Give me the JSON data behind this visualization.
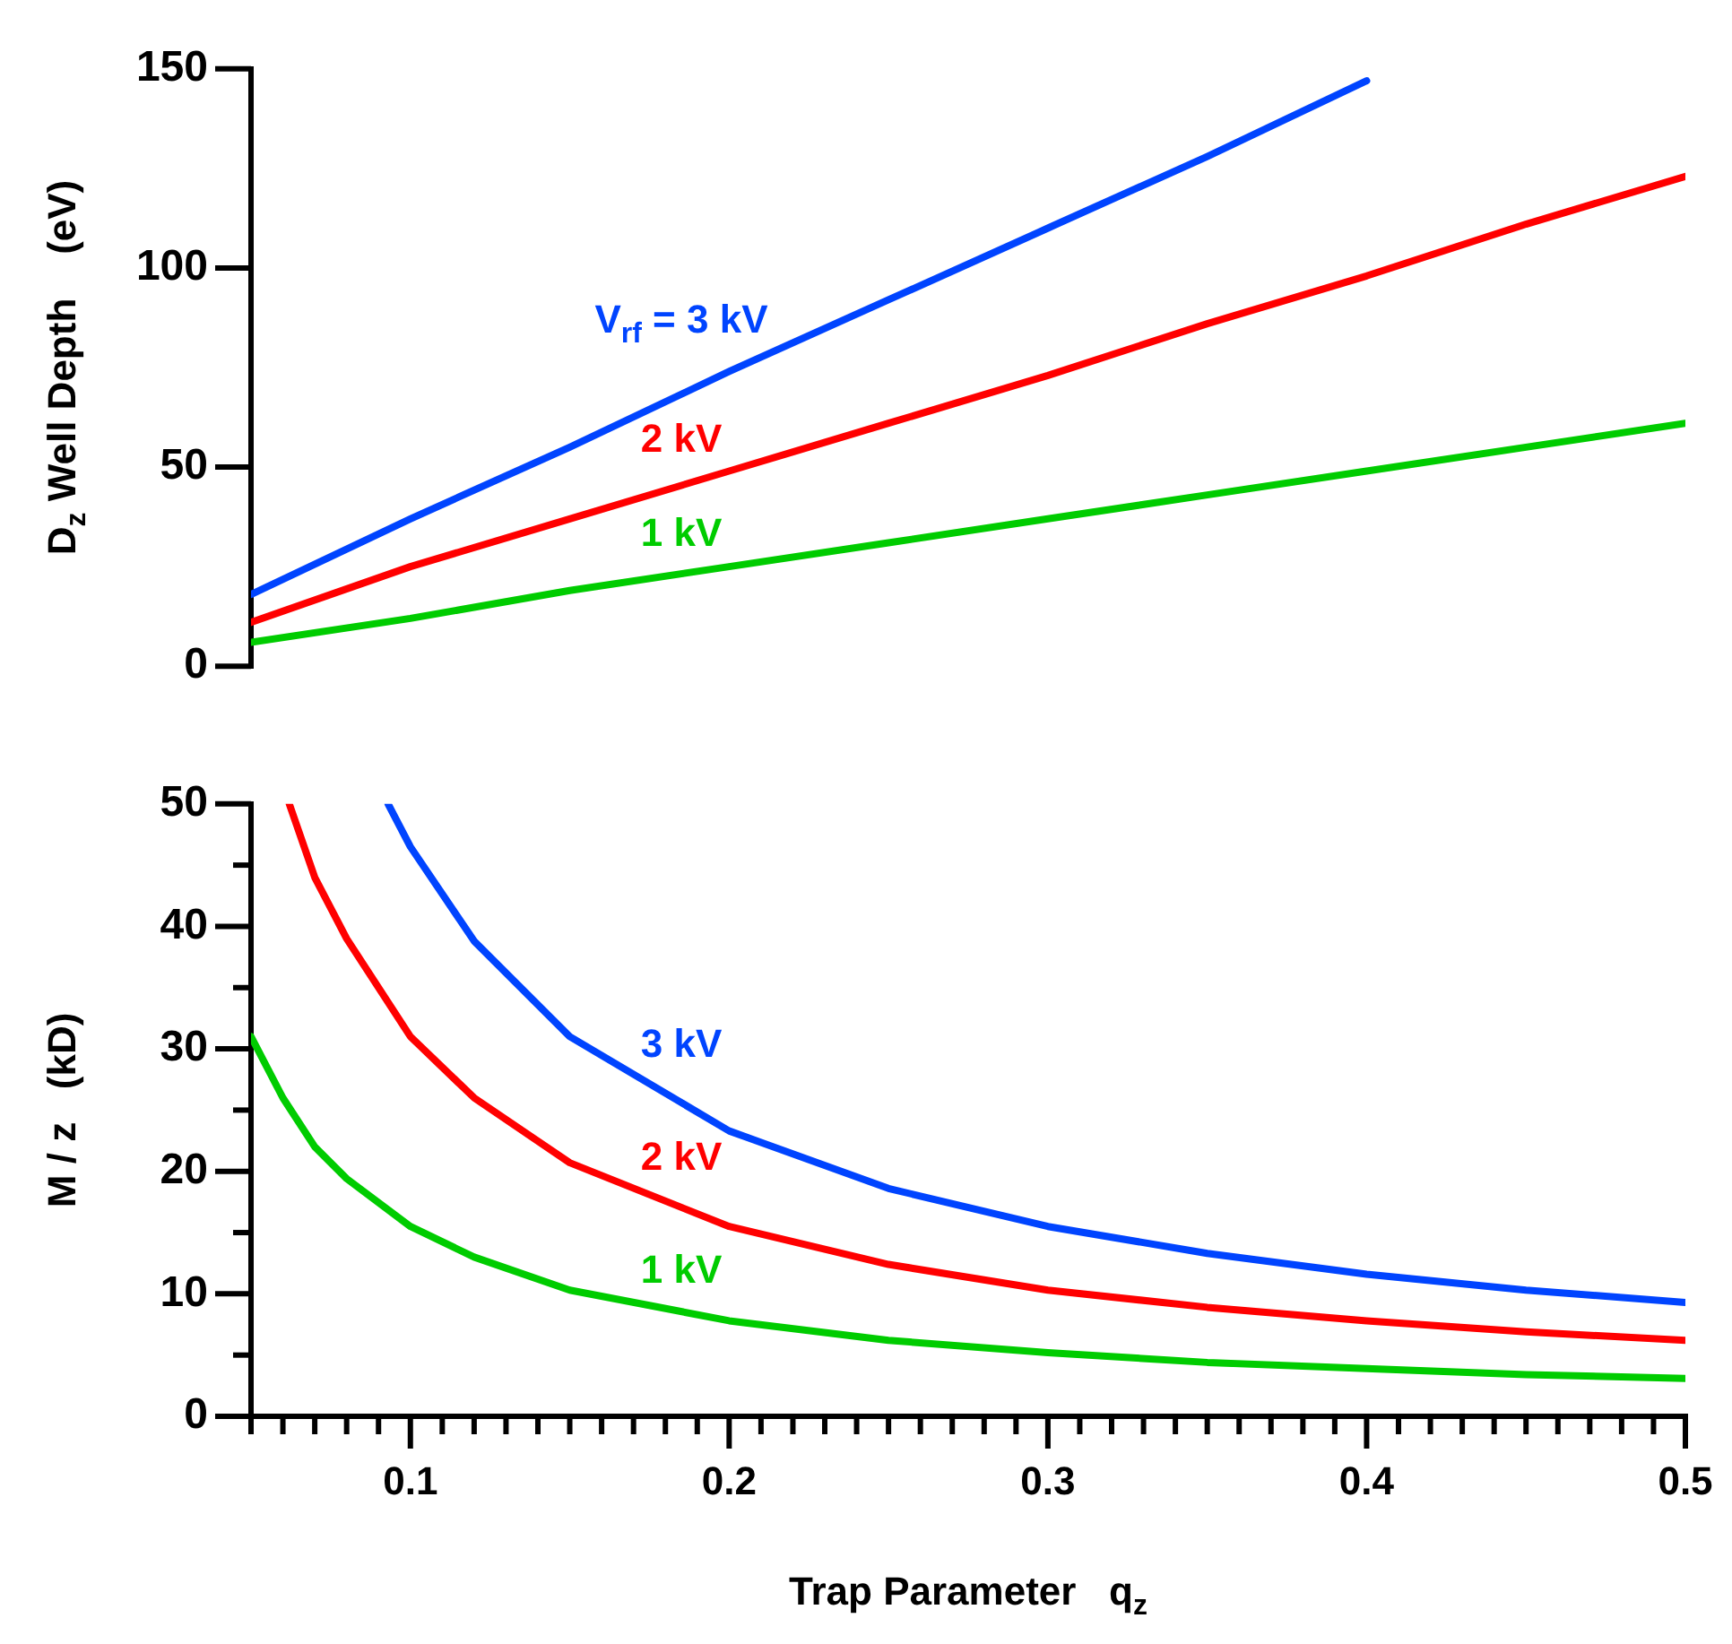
{
  "chart_data": [
    {
      "type": "line",
      "ylabel": "D$_{z}$ Well Depth    (eV)",
      "xlim": [
        0.05,
        0.5
      ],
      "ylim": [
        0,
        150
      ],
      "yticks": [
        0,
        50,
        100,
        150
      ],
      "tick_labels": "y",
      "grid": false,
      "legend": false,
      "marker": "none",
      "line_style": "solid",
      "series": [
        {
          "name": "V$_{rf}$ = 3 kV",
          "color": "#0044ff",
          "x": [
            0.05,
            0.1,
            0.15,
            0.2,
            0.25,
            0.3,
            0.35,
            0.4
          ],
          "values": [
            18,
            37,
            55,
            74,
            92,
            110,
            128,
            147
          ]
        },
        {
          "name": "2 kV",
          "color": "#ff0000",
          "x": [
            0.05,
            0.1,
            0.15,
            0.2,
            0.25,
            0.3,
            0.35,
            0.4,
            0.45,
            0.5
          ],
          "values": [
            11,
            25,
            37,
            49,
            61,
            73,
            86,
            98,
            111,
            123
          ]
        },
        {
          "name": "1 kV",
          "color": "#00cc00",
          "x": [
            0.05,
            0.1,
            0.15,
            0.2,
            0.25,
            0.3,
            0.35,
            0.4,
            0.45,
            0.5
          ],
          "values": [
            6,
            12,
            19,
            25,
            31,
            37,
            43,
            49,
            55,
            61
          ]
        }
      ]
    },
    {
      "type": "line",
      "xlabel": "Trap Parameter   q$_{z}$",
      "ylabel": "M / z   (kD)",
      "xlim": [
        0.05,
        0.5
      ],
      "ylim": [
        0,
        50
      ],
      "grid": false,
      "legend": false,
      "marker": "none",
      "line_style": "solid",
      "xticks": [
        {
          "value": 0.05,
          "label": null
        },
        {
          "value": 0.06,
          "label": null
        },
        {
          "value": 0.07,
          "label": null
        },
        {
          "value": 0.08,
          "label": null
        },
        {
          "value": 0.09,
          "label": null
        },
        0.1,
        {
          "value": 0.11,
          "label": null
        },
        {
          "value": 0.12,
          "label": null
        },
        {
          "value": 0.13,
          "label": null
        },
        {
          "value": 0.14,
          "label": null
        },
        {
          "value": 0.15,
          "label": null
        },
        {
          "value": 0.16,
          "label": null
        },
        {
          "value": 0.17,
          "label": null
        },
        {
          "value": 0.18,
          "label": null
        },
        {
          "value": 0.19,
          "label": null
        },
        0.2,
        {
          "value": 0.21,
          "label": null
        },
        {
          "value": 0.22,
          "label": null
        },
        {
          "value": 0.23,
          "label": null
        },
        {
          "value": 0.24,
          "label": null
        },
        {
          "value": 0.25,
          "label": null
        },
        {
          "value": 0.26,
          "label": null
        },
        {
          "value": 0.27,
          "label": null
        },
        {
          "value": 0.28,
          "label": null
        },
        {
          "value": 0.29,
          "label": null
        },
        0.3,
        {
          "value": 0.31,
          "label": null
        },
        {
          "value": 0.32,
          "label": null
        },
        {
          "value": 0.33,
          "label": null
        },
        {
          "value": 0.34,
          "label": null
        },
        {
          "value": 0.35,
          "label": null
        },
        {
          "value": 0.36,
          "label": null
        },
        {
          "value": 0.37,
          "label": null
        },
        {
          "value": 0.38,
          "label": null
        },
        {
          "value": 0.39,
          "label": null
        },
        0.4,
        {
          "value": 0.41,
          "label": null
        },
        {
          "value": 0.42,
          "label": null
        },
        {
          "value": 0.43,
          "label": null
        },
        {
          "value": 0.44,
          "label": null
        },
        {
          "value": 0.45,
          "label": null
        },
        {
          "value": 0.46,
          "label": null
        },
        {
          "value": 0.47,
          "label": null
        },
        {
          "value": 0.48,
          "label": null
        },
        {
          "value": 0.49,
          "label": null
        },
        0.5
      ],
      "yticks": [
        0,
        {
          "value": 5,
          "label": null
        },
        10,
        {
          "value": 15,
          "label": null
        },
        20,
        {
          "value": 25,
          "label": null
        },
        30,
        {
          "value": 35,
          "label": null
        },
        40,
        {
          "value": 45,
          "label": null
        },
        50
      ],
      "series": [
        {
          "name": "3 kV",
          "color": "#0044ff",
          "x": [
            0.093,
            0.1,
            0.12,
            0.15,
            0.2,
            0.25,
            0.3,
            0.35,
            0.4,
            0.45,
            0.5
          ],
          "values": [
            50,
            46.5,
            38.8,
            31,
            23.3,
            18.6,
            15.5,
            13.3,
            11.6,
            10.3,
            9.3
          ]
        },
        {
          "name": "2 kV",
          "color": "#ff0000",
          "x": [
            0.062,
            0.07,
            0.08,
            0.1,
            0.12,
            0.15,
            0.2,
            0.25,
            0.3,
            0.35,
            0.4,
            0.45,
            0.5
          ],
          "values": [
            50,
            44,
            39,
            31,
            26,
            20.7,
            15.5,
            12.4,
            10.3,
            8.9,
            7.8,
            6.9,
            6.2
          ]
        },
        {
          "name": "1 kV",
          "color": "#00cc00",
          "x": [
            0.05,
            0.06,
            0.07,
            0.08,
            0.1,
            0.12,
            0.15,
            0.2,
            0.25,
            0.3,
            0.35,
            0.4,
            0.45,
            0.5
          ],
          "values": [
            31,
            26,
            22,
            19.4,
            15.5,
            13,
            10.3,
            7.8,
            6.2,
            5.2,
            4.4,
            3.9,
            3.4,
            3.1
          ]
        }
      ]
    }
  ]
}
